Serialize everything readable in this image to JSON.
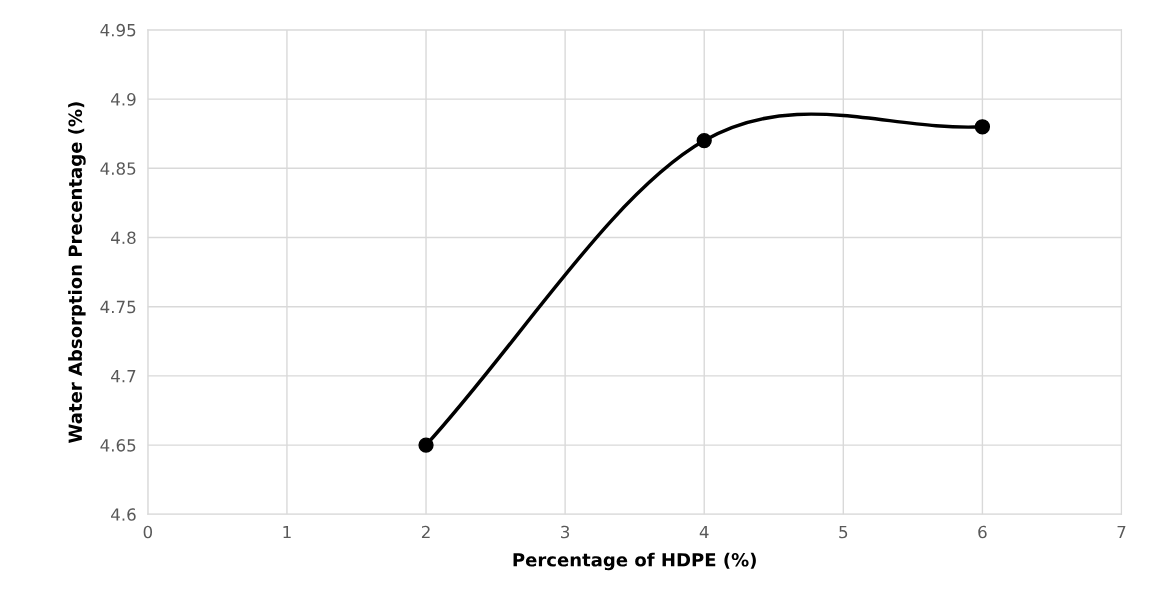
{
  "chart_data": {
    "type": "line",
    "xlabel": "Percentage of HDPE (%)",
    "ylabel": "Water Absorption Precentage (%)",
    "x": [
      2,
      4,
      6
    ],
    "series": [
      {
        "color": "#000000",
        "values": [
          4.65,
          4.87,
          4.88
        ]
      }
    ],
    "xlim": [
      0,
      7
    ],
    "xticks": [
      0,
      1,
      2,
      3,
      4,
      5,
      6,
      7
    ],
    "ylim": [
      4.6,
      4.95
    ],
    "yticks": [
      4.6,
      4.65,
      4.7,
      4.75,
      4.8,
      4.85,
      4.9,
      4.95
    ],
    "grid": true,
    "marker": "circle",
    "line_style": "solid",
    "legend": false
  }
}
